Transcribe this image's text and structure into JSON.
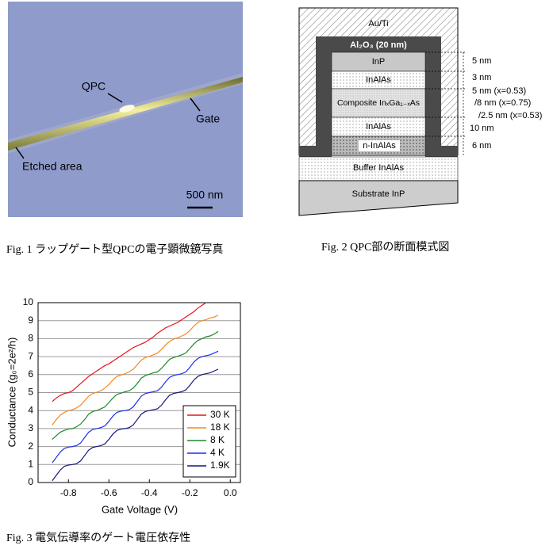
{
  "fig1": {
    "labels": {
      "qpc": "QPC",
      "gate": "Gate",
      "etched": "Etched area",
      "scale": "500 nm"
    },
    "caption": "Fig. 1 ラップゲート型QPCの電子顕微鏡写真"
  },
  "fig2": {
    "top": "Au/Ti",
    "oxide": "Al₂O₃ (20 nm)",
    "layers": [
      "InP",
      "InAlAs",
      "Composite InₓGa₁₋ₓAs",
      "InAlAs",
      "n-InAlAs",
      "Buffer InAlAs",
      "Substrate InP"
    ],
    "thickness": [
      "5 nm",
      "3 nm",
      "5 nm (x=0.53)",
      "/8 nm (x=0.75)",
      "/2.5 nm (x=0.53)",
      "10 nm",
      "6 nm"
    ],
    "caption": "Fig. 2 QPC部の断面模式図"
  },
  "chart_data": {
    "type": "line",
    "x_label": "Gate Voltage (V)",
    "y_label": "Conductance (g₀=2e²/h)",
    "caption": "Fig. 3 電気伝導率のゲート電圧依存性",
    "x": [
      -0.88,
      -0.86,
      -0.84,
      -0.82,
      -0.8,
      -0.78,
      -0.76,
      -0.74,
      -0.72,
      -0.7,
      -0.68,
      -0.66,
      -0.64,
      -0.62,
      -0.6,
      -0.58,
      -0.56,
      -0.54,
      -0.52,
      -0.5,
      -0.48,
      -0.46,
      -0.44,
      -0.42,
      -0.4,
      -0.38,
      -0.36,
      -0.34,
      -0.32,
      -0.3,
      -0.28,
      -0.26,
      -0.24,
      -0.22,
      -0.2,
      -0.18,
      -0.16,
      -0.14,
      -0.12,
      -0.1,
      -0.08,
      -0.06
    ],
    "series": [
      {
        "name": "30 K",
        "color": "#e8141c",
        "values": [
          4.5,
          4.7,
          4.85,
          4.95,
          5.0,
          5.1,
          5.3,
          5.5,
          5.7,
          5.9,
          6.05,
          6.2,
          6.35,
          6.5,
          6.6,
          6.75,
          6.9,
          7.05,
          7.2,
          7.35,
          7.5,
          7.6,
          7.7,
          7.8,
          7.95,
          8.1,
          8.3,
          8.45,
          8.6,
          8.7,
          8.8,
          8.9,
          9.05,
          9.2,
          9.35,
          9.5,
          9.7,
          9.85,
          10.0,
          null,
          null,
          null
        ]
      },
      {
        "name": "18 K",
        "color": "#f58a1f",
        "values": [
          3.2,
          3.5,
          3.75,
          3.9,
          4.0,
          4.05,
          4.15,
          4.3,
          4.55,
          4.8,
          4.95,
          5.02,
          5.1,
          5.25,
          5.45,
          5.7,
          5.9,
          5.98,
          6.05,
          6.15,
          6.3,
          6.55,
          6.8,
          6.95,
          7.02,
          7.1,
          7.2,
          7.4,
          7.65,
          7.85,
          7.97,
          8.05,
          8.15,
          8.25,
          8.45,
          8.7,
          8.9,
          9.0,
          9.05,
          9.15,
          9.2,
          9.3
        ]
      },
      {
        "name": "8 K",
        "color": "#1a8a2a",
        "values": [
          2.4,
          2.6,
          2.8,
          2.9,
          2.97,
          3.0,
          3.1,
          3.25,
          3.5,
          3.8,
          3.95,
          4.0,
          4.1,
          4.2,
          4.45,
          4.7,
          4.9,
          4.97,
          5.05,
          5.1,
          5.25,
          5.5,
          5.8,
          5.95,
          6.02,
          6.1,
          6.15,
          6.35,
          6.6,
          6.85,
          6.95,
          7.02,
          7.1,
          7.2,
          7.45,
          7.7,
          7.9,
          8.0,
          8.1,
          8.15,
          8.25,
          8.4
        ]
      },
      {
        "name": "4 K",
        "color": "#1c2ff0",
        "values": [
          1.1,
          1.4,
          1.7,
          1.9,
          1.97,
          2.0,
          2.05,
          2.2,
          2.5,
          2.8,
          2.95,
          3.0,
          3.05,
          3.15,
          3.4,
          3.7,
          3.9,
          3.97,
          4.0,
          4.05,
          4.2,
          4.5,
          4.8,
          4.95,
          5.0,
          5.05,
          5.1,
          5.3,
          5.6,
          5.85,
          5.95,
          6.0,
          6.05,
          6.15,
          6.4,
          6.7,
          6.9,
          7.0,
          7.05,
          7.1,
          7.2,
          7.3
        ]
      },
      {
        "name": "1.9K",
        "color": "#16167a",
        "values": [
          0.1,
          0.4,
          0.7,
          0.9,
          0.97,
          1.0,
          1.05,
          1.2,
          1.5,
          1.8,
          1.95,
          2.0,
          2.05,
          2.15,
          2.4,
          2.7,
          2.9,
          2.97,
          3.0,
          3.05,
          3.2,
          3.5,
          3.8,
          3.95,
          4.0,
          4.05,
          4.1,
          4.3,
          4.6,
          4.85,
          4.95,
          5.0,
          5.05,
          5.15,
          5.4,
          5.7,
          5.9,
          6.0,
          6.05,
          6.1,
          6.2,
          6.3
        ]
      }
    ],
    "xlim": [
      -0.95,
      0.05
    ],
    "xticks": [
      -0.8,
      -0.6,
      -0.4,
      -0.2,
      {
        "value": 0,
        "label": "0.0"
      }
    ],
    "ylim": [
      0,
      10
    ],
    "yticks": [
      0,
      1,
      2,
      3,
      4,
      5,
      6,
      7,
      8,
      9,
      10
    ],
    "grid": true,
    "legend": "lower right"
  }
}
